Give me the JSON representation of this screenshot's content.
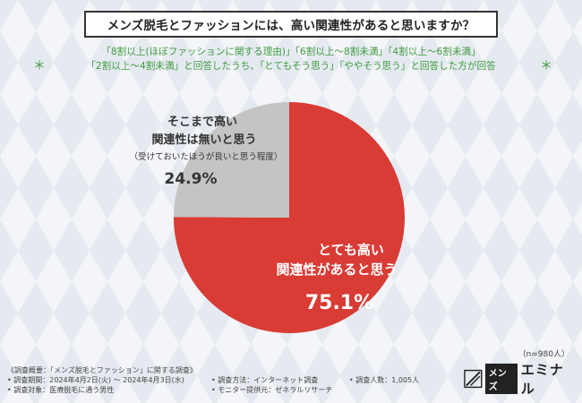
{
  "title": "メンズ脱毛とファッションには、高い関連性があると思いますか？",
  "subtitle": {
    "line1": "「8割以上(ほぼファッションに関する理由)」「6割以上～8割未満」「4割以上～6割未満」",
    "line2": "「2割以上～4割未満」と回答したうち、「とてもそう思う」「ややそう思う」と回答した方が回答",
    "star": "＊"
  },
  "chart_data": {
    "type": "pie",
    "slices": [
      {
        "label_main": "とても高い",
        "label_sub": "関連性があると思う",
        "value": 75.1,
        "display": "75.1%",
        "color": "#d93b35"
      },
      {
        "label_main": "そこまで高い",
        "label_sub": "関連性は無いと思う",
        "note": "（受けておいたほうが良いと思う程度）",
        "value": 24.9,
        "display": "24.9%",
        "color": "#c4c4c4"
      }
    ],
    "start": "top",
    "direction": "clockwise"
  },
  "n_label": "（n=980人）",
  "footer": {
    "col1": [
      "《調査概要：「メンズ脱毛とファッション」に関する調査》",
      "• 調査期間：2024年4月2日(火) ～ 2024年4月3日(水)",
      "• 調査対象：医療脱毛に通う男性"
    ],
    "col2": [
      "• 調査方法：インターネット調査",
      "• モニター提供元：ゼネラルリサーチ"
    ],
    "col3": [
      "• 調査人数：1,005人"
    ]
  },
  "logo": {
    "box": "メンズ",
    "text": "エミナル"
  }
}
